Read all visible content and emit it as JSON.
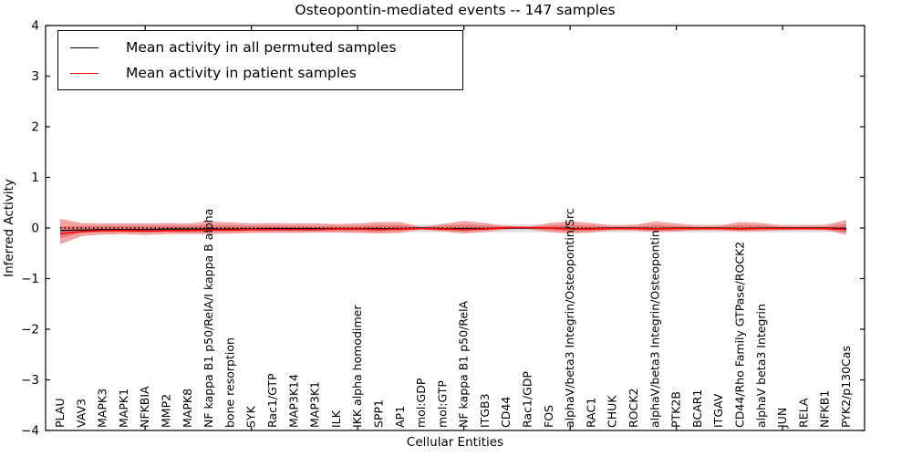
{
  "chart_data": {
    "type": "line",
    "title": "Osteopontin-mediated events -- 147 samples",
    "xlabel": "Cellular Entities",
    "ylabel": "Inferred Activity",
    "ylim": [
      -4,
      4
    ],
    "grid": false,
    "y_tick_values": [
      4,
      3,
      2,
      1,
      0,
      -1,
      -2,
      -3,
      -4
    ],
    "y_tick_labels": [
      "4",
      "3",
      "2",
      "1",
      "0",
      "−1",
      "−2",
      "−3",
      "−4"
    ],
    "x_major_tick_indices": [
      4,
      9,
      14,
      19,
      24,
      29,
      34
    ],
    "entities": [
      "PLAU",
      "VAV3",
      "MAPK3",
      "MAPK1",
      "NFKBIA",
      "MMP2",
      "MAPK8",
      "NF kappa B1 p50/RelA/I kappa B alpha",
      "bone resorption",
      "SYK",
      "Rac1/GTP",
      "MAP3K14",
      "MAP3K1",
      "ILK",
      "IKK alpha homodimer",
      "SPP1",
      "AP1",
      "mol:GDP",
      "mol:GTP",
      "NF kappa B1 p50/RelA",
      "ITGB3",
      "CD44",
      "Rac1/GDP",
      "FOS",
      "alphaV/beta3 Integrin/Osteopontin/Src",
      "RAC1",
      "CHUK",
      "ROCK2",
      "alphaV/beta3 Integrin/Osteopontin",
      "PTK2B",
      "BCAR1",
      "ITGAV",
      "CD44/Rho Family GTPase/ROCK2",
      "alphaV beta3 Integrin",
      "JUN",
      "RELA",
      "NFKB1",
      "PYK2/p130Cas"
    ],
    "legend": {
      "position": "upper left",
      "entries": [
        {
          "label": "Mean activity in all permuted samples",
          "color": "#000000"
        },
        {
          "label": "Mean activity in patient samples",
          "color": "#ff0000"
        }
      ]
    },
    "zero_reference": {
      "value": 0,
      "style": "dotted",
      "color": "#000000"
    },
    "series": [
      {
        "name": "Mean activity in all permuted samples",
        "color": "#000000",
        "width": 1.2,
        "values": [
          -0.05,
          -0.04,
          -0.03,
          -0.03,
          -0.03,
          -0.02,
          -0.02,
          -0.02,
          -0.02,
          -0.02,
          -0.01,
          -0.01,
          -0.01,
          -0.01,
          -0.01,
          -0.01,
          -0.01,
          0,
          -0.01,
          -0.01,
          -0.01,
          0,
          0,
          0,
          -0.01,
          -0.01,
          0,
          0,
          -0.01,
          0,
          0,
          0,
          -0.01,
          0,
          0,
          0,
          0,
          -0.01
        ]
      },
      {
        "name": "Mean activity in patient samples",
        "color": "#ff0000",
        "width": 1.6,
        "values": [
          -0.11,
          -0.07,
          -0.05,
          -0.05,
          -0.06,
          -0.05,
          -0.05,
          -0.04,
          -0.04,
          -0.03,
          -0.03,
          -0.03,
          -0.03,
          -0.02,
          -0.02,
          -0.03,
          -0.02,
          -0.01,
          -0.02,
          -0.03,
          -0.02,
          0.01,
          0.01,
          0,
          -0.02,
          -0.02,
          -0.01,
          -0.01,
          -0.02,
          -0.01,
          -0.01,
          -0.01,
          -0.02,
          -0.01,
          -0.01,
          -0.01,
          -0.01,
          -0.03
        ]
      }
    ],
    "bands": [
      {
        "name": "permuted-samples-range",
        "color": "#dcdcdc",
        "upper": [
          0.07,
          0.07,
          0.07,
          0.07,
          0.07,
          0.07,
          0.07,
          0.07,
          0.07,
          0.07,
          0.07,
          0.07,
          0.07,
          0.07,
          0.07,
          0.07,
          0.07,
          0.07,
          0.07,
          0.07,
          0.07,
          0.07,
          0.07,
          0.07,
          0.07,
          0.07,
          0.07,
          0.07,
          0.07,
          0.07,
          0.07,
          0.07,
          0.07,
          0.07,
          0.07,
          0.07,
          0.07,
          0.07
        ],
        "lower": [
          -0.08,
          -0.08,
          -0.08,
          -0.08,
          -0.08,
          -0.08,
          -0.08,
          -0.08,
          -0.08,
          -0.08,
          -0.08,
          -0.08,
          -0.08,
          -0.08,
          -0.08,
          -0.08,
          -0.08,
          -0.08,
          -0.08,
          -0.08,
          -0.08,
          -0.08,
          -0.08,
          -0.08,
          -0.08,
          -0.08,
          -0.08,
          -0.08,
          -0.08,
          -0.08,
          -0.08,
          -0.08,
          -0.08,
          -0.08,
          -0.08,
          -0.08,
          -0.08,
          -0.08
        ]
      },
      {
        "name": "patient-samples-outer-band",
        "color": "#f2a3a3",
        "upper": [
          0.18,
          0.1,
          0.09,
          0.09,
          0.09,
          0.1,
          0.09,
          0.13,
          0.11,
          0.09,
          0.1,
          0.09,
          0.09,
          0.08,
          0.09,
          0.12,
          0.12,
          0.02,
          0.08,
          0.14,
          0.1,
          0.04,
          0.02,
          0.1,
          0.13,
          0.1,
          0.05,
          0.06,
          0.13,
          0.09,
          0.05,
          0.05,
          0.12,
          0.1,
          0.05,
          0.05,
          0.06,
          0.16
        ],
        "lower": [
          -0.32,
          -0.16,
          -0.13,
          -0.12,
          -0.14,
          -0.12,
          -0.12,
          -0.12,
          -0.11,
          -0.1,
          -0.1,
          -0.1,
          -0.09,
          -0.09,
          -0.1,
          -0.11,
          -0.1,
          -0.03,
          -0.07,
          -0.11,
          -0.08,
          -0.03,
          -0.02,
          -0.08,
          -0.11,
          -0.09,
          -0.05,
          -0.05,
          -0.09,
          -0.07,
          -0.05,
          -0.05,
          -0.07,
          -0.06,
          -0.05,
          -0.04,
          -0.05,
          -0.13
        ]
      },
      {
        "name": "patient-samples-inner-band",
        "color": "#e87a7a",
        "upper": [
          0.04,
          0.04,
          0.04,
          0.04,
          0.04,
          0.05,
          0.04,
          0.06,
          0.05,
          0.04,
          0.05,
          0.04,
          0.04,
          0.04,
          0.04,
          0.06,
          0.06,
          0.01,
          0.04,
          0.07,
          0.05,
          0.02,
          0.01,
          0.05,
          0.06,
          0.05,
          0.02,
          0.03,
          0.06,
          0.04,
          0.02,
          0.02,
          0.06,
          0.05,
          0.02,
          0.02,
          0.03,
          0.08
        ],
        "lower": [
          -0.2,
          -0.1,
          -0.08,
          -0.08,
          -0.09,
          -0.08,
          -0.08,
          -0.08,
          -0.07,
          -0.06,
          -0.06,
          -0.06,
          -0.06,
          -0.06,
          -0.06,
          -0.07,
          -0.06,
          -0.02,
          -0.05,
          -0.07,
          -0.05,
          -0.02,
          -0.01,
          -0.05,
          -0.07,
          -0.06,
          -0.03,
          -0.03,
          -0.06,
          -0.05,
          -0.03,
          -0.03,
          -0.05,
          -0.04,
          -0.03,
          -0.03,
          -0.03,
          -0.09
        ]
      }
    ]
  }
}
